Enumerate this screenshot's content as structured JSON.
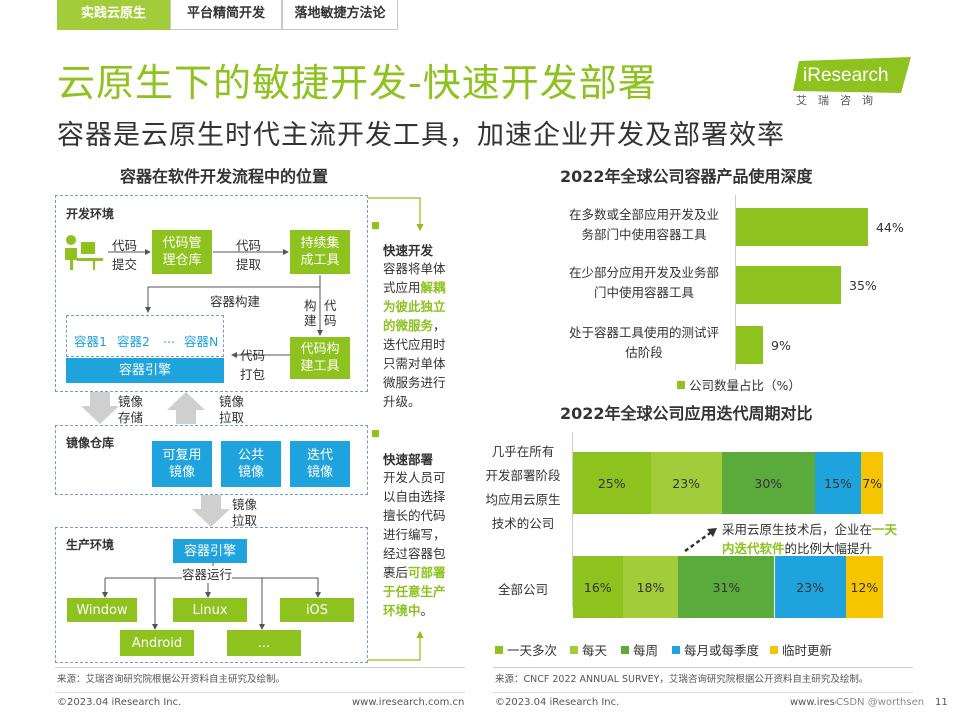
{
  "tabs": [
    {
      "label": "实践云原生"
    },
    {
      "label": "平台精简开发"
    },
    {
      "label": "落地敏捷方法论"
    }
  ],
  "title": "云原生下的敏捷开发-快速开发部署",
  "subtitle": "容器是云原生时代主流开发工具，加速企业开发及部署效率",
  "logo": {
    "brand": "iResearch",
    "sub": "艾瑞咨询"
  },
  "diagram": {
    "heading": "容器在软件开发流程中的位置",
    "dev_env": "开发环境",
    "code_submit": [
      "代码",
      "提交"
    ],
    "code_repo": "代码管理仓库",
    "code_fetch": [
      "代码",
      "提取"
    ],
    "ci_tool": "持续集成工具",
    "container_build": "容器构建",
    "build_code": [
      "构",
      "建",
      "代",
      "码"
    ],
    "containers": [
      "容器1",
      "容器2",
      "...",
      "容器N"
    ],
    "engine": "容器引擎",
    "code_pack": [
      "代码",
      "打包"
    ],
    "code_build_tool": "代码构建工具",
    "img_store": [
      "镜像",
      "存储"
    ],
    "img_pull": [
      "镜像",
      "拉取"
    ],
    "img_repo": "镜像仓库",
    "img_types": [
      "可复用镜像",
      "公共镜像",
      "迭代镜像"
    ],
    "img_pull2": [
      "镜像",
      "拉取"
    ],
    "prod_env": "生产环境",
    "prod_engine": "容器引擎",
    "container_run": "容器运行",
    "platforms": [
      "Window",
      "Linux",
      "iOS",
      "Android",
      "..."
    ]
  },
  "notes": [
    {
      "heading": "快速开发",
      "parts": [
        "容器将单体式应用",
        "解耦为彼此独立的微服务",
        "，迭代应用时只需对单体微服务进行升级。"
      ]
    },
    {
      "heading": "快速部署",
      "parts": [
        "开发人员可以自由选择擅长的代码进行编写，经过容器包裹后",
        "可部署于任意生产环境中",
        "。"
      ]
    }
  ],
  "source_left": "来源：艾瑞咨询研究院根据公开资料自主研究及绘制。",
  "source_right": "来源：CNCF 2022 ANNUAL SURVEY，艾瑞咨询研究院根据公开资料自主研究及绘制。",
  "footer": {
    "left1": "©2023.04 iResearch Inc.",
    "right1": "www.iresearch.com.cn",
    "left2": "©2023.04 iResearch Inc.",
    "right2": "www.iresearch.com.cn",
    "watermark": "CSDN @worthsen",
    "page": "11"
  },
  "annotation": {
    "parts": [
      "采用云原生技术后，企业在",
      "一天内迭代软件",
      "的比例大幅提升"
    ]
  },
  "colors": {
    "green": "#8dc21f",
    "blue": "#1fa3dc",
    "dark_green": "#5aaa3c",
    "yellow": "#f7c400"
  },
  "chart_data": [
    {
      "type": "bar",
      "orientation": "horizontal",
      "title": "2022年全球公司容器产品使用深度",
      "categories": [
        "在多数或全部应用开发及业务部门中使用容器工具",
        "在少部分应用开发及业务部门中使用容器工具",
        "处于容器工具使用的测试评估阶段"
      ],
      "category_lines": [
        [
          "在多数或全部应用开发及业",
          "务部门中使用容器工具"
        ],
        [
          "在少部分应用开发及业务部",
          "门中使用容器工具"
        ],
        [
          "处于容器工具使用的测试评",
          "估阶段"
        ]
      ],
      "values": [
        44,
        35,
        9
      ],
      "labels": [
        "44%",
        "35%",
        "9%"
      ],
      "legend": "公司数量占比（%）",
      "xlim": [
        0,
        100
      ]
    },
    {
      "type": "bar",
      "stacked": true,
      "orientation": "horizontal",
      "title": "2022年全球公司应用迭代周期对比",
      "categories": [
        "几乎在所有开发部署阶段均应用云原生技术的公司",
        "全部公司"
      ],
      "category_lines": [
        [
          "几乎在所有",
          "开发部署阶段",
          "均应用云原生",
          "技术的公司"
        ],
        [
          "全部公司"
        ]
      ],
      "series": [
        {
          "name": "一天多次",
          "values": [
            25,
            16
          ],
          "labels": [
            "25%",
            "16%"
          ]
        },
        {
          "name": "每天",
          "values": [
            23,
            18
          ],
          "labels": [
            "23%",
            "18%"
          ]
        },
        {
          "name": "每周",
          "values": [
            30,
            31
          ],
          "labels": [
            "30%",
            "31%"
          ]
        },
        {
          "name": "每月或每季度",
          "values": [
            15,
            23
          ],
          "labels": [
            "15%",
            "23%"
          ]
        },
        {
          "name": "临时更新",
          "values": [
            7,
            12
          ],
          "labels": [
            "7%",
            "12%"
          ]
        }
      ],
      "series_colors": [
        "#8dc21f",
        "#a3cc3a",
        "#5aaa3c",
        "#1fa3dc",
        "#f7c400"
      ],
      "xlim": [
        0,
        100
      ]
    }
  ]
}
